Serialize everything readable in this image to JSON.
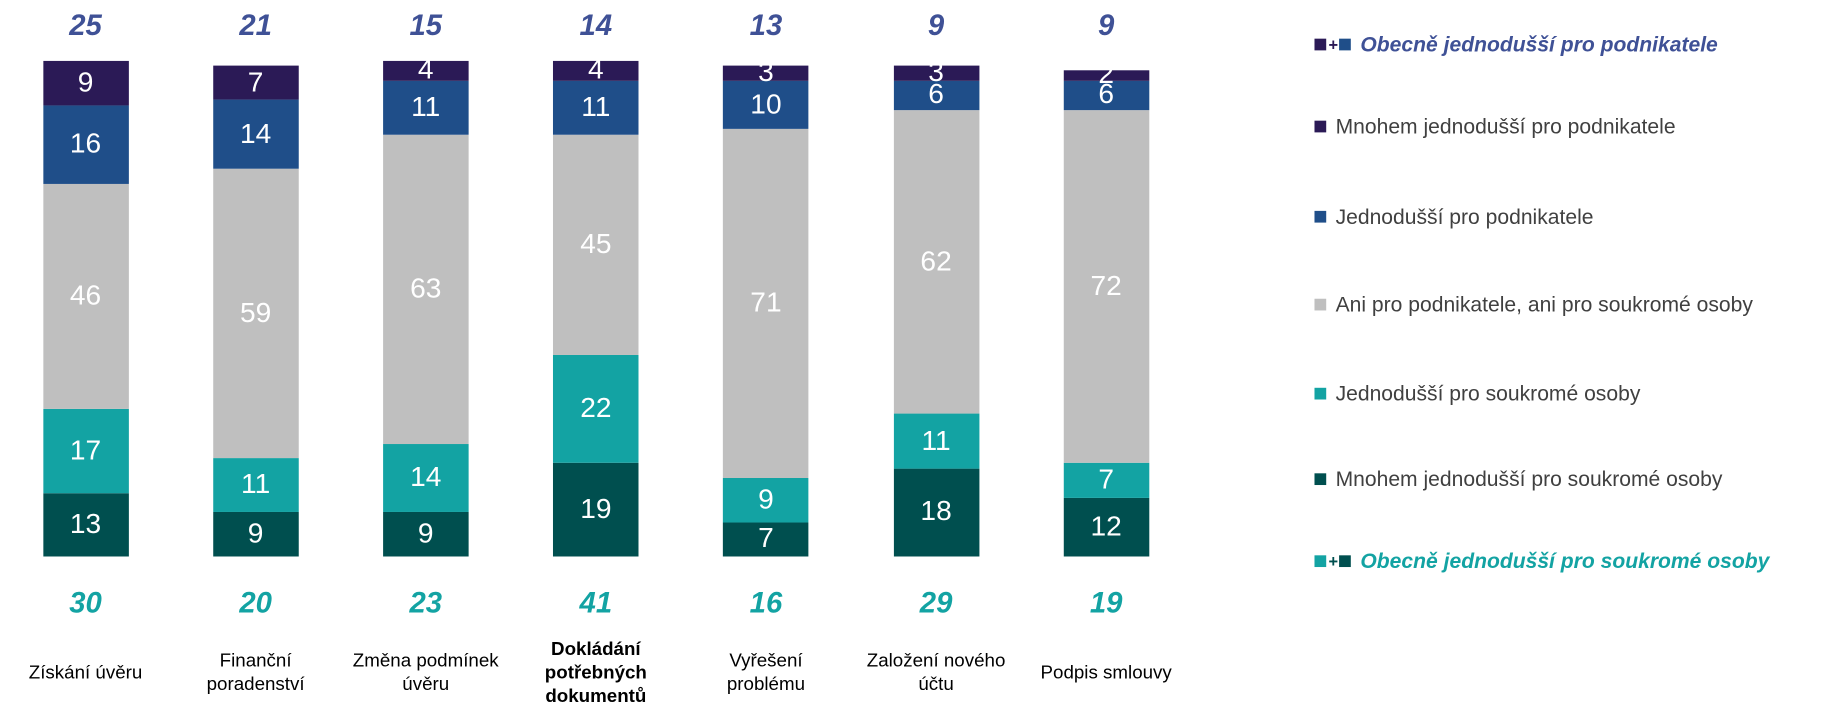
{
  "chart_data": {
    "type": "bar",
    "stacked": true,
    "categories": [
      "Získání úvěru",
      "Finanční\nporadenství",
      "Změna podmínek\núvěru",
      "Dokládání\npotřebných\ndokumentů",
      "Vyřešení\nproblému",
      "Založení nového\núčtu",
      "Podpis smlouvy"
    ],
    "highlight_category": 3,
    "series": [
      {
        "name": "Mnohem jednodušší pro soukromé osoby",
        "color": "#004f4f",
        "values": [
          13,
          9,
          9,
          19,
          7,
          18,
          12
        ]
      },
      {
        "name": "Jednodušší pro soukromé osoby",
        "color": "#13a3a3",
        "values": [
          17,
          11,
          14,
          22,
          9,
          11,
          7
        ]
      },
      {
        "name": "Ani pro podnikatele, ani pro soukromé osoby",
        "color": "#bfbfbf",
        "values": [
          46,
          59,
          63,
          45,
          71,
          62,
          72
        ]
      },
      {
        "name": "Jednodušší pro podnikatele",
        "color": "#1f4e89",
        "values": [
          16,
          14,
          11,
          11,
          10,
          6,
          6
        ]
      },
      {
        "name": "Mnohem jednodušší pro podnikatele",
        "color": "#2b1a56",
        "values": [
          9,
          7,
          4,
          4,
          3,
          3,
          2
        ]
      }
    ],
    "top_totals": {
      "name": "Obecně jednodušší pro podnikatele",
      "color": "#3f5196",
      "values": [
        25,
        21,
        15,
        14,
        13,
        9,
        9
      ]
    },
    "bottom_totals": {
      "name": "Obecně jednodušší pro soukromé osoby",
      "color": "#13a3a3",
      "values": [
        30,
        20,
        23,
        41,
        16,
        29,
        19
      ]
    }
  }
}
